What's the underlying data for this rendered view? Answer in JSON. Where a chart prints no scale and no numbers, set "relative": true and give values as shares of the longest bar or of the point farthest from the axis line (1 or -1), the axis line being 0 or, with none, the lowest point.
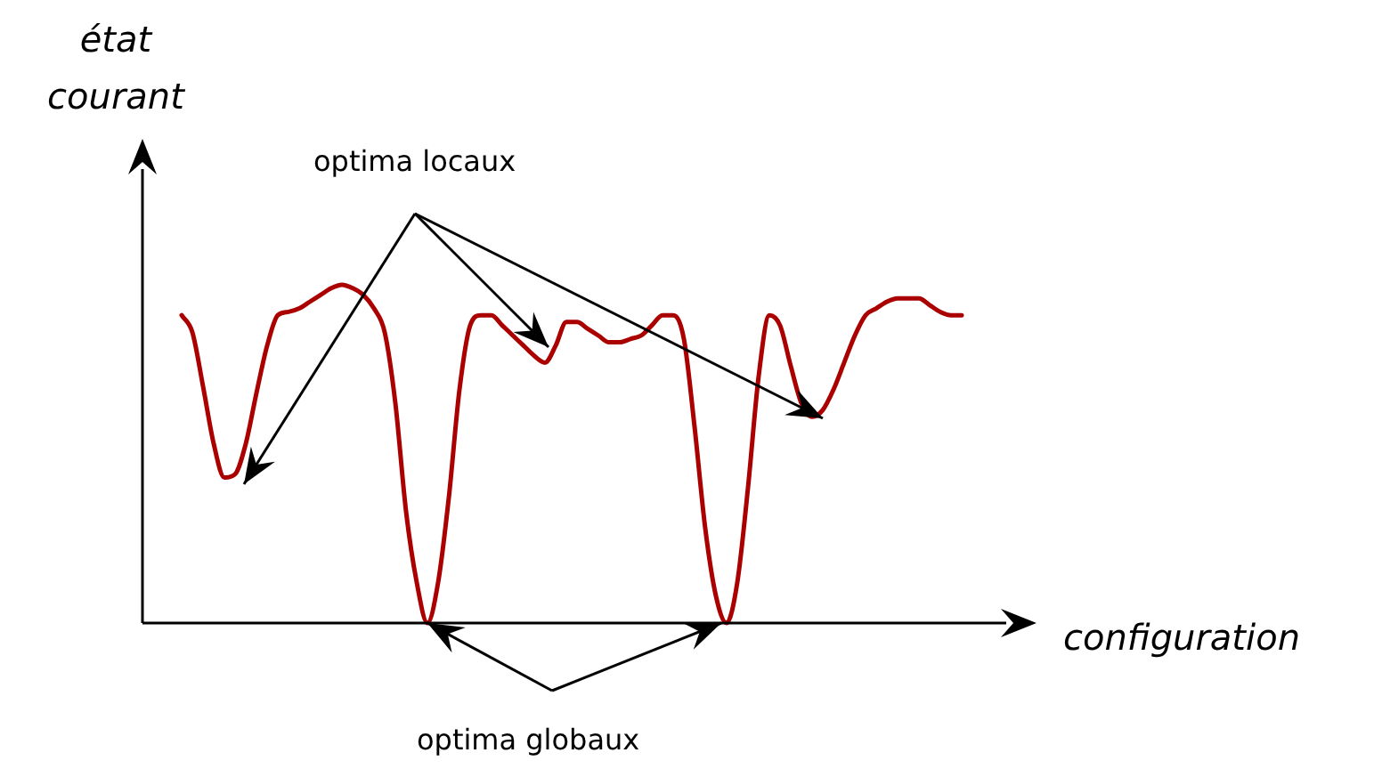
{
  "chart_data": {
    "type": "line",
    "relative": true,
    "xlabel": "configuration",
    "ylabel": "état courant",
    "marker": "none",
    "annotations": [
      "optima locaux",
      "optima globaux"
    ],
    "categories": [
      null,
      null,
      null,
      null,
      null,
      null,
      null,
      null,
      null,
      null,
      null,
      null,
      null,
      null,
      null,
      null,
      null,
      null,
      null,
      null,
      null,
      null,
      null,
      null,
      null,
      null,
      null,
      null,
      null,
      null,
      null,
      null,
      null,
      null,
      null,
      null,
      null,
      null,
      null,
      null,
      null,
      null,
      null,
      null,
      null,
      null,
      null,
      null,
      null,
      null,
      null,
      null,
      null,
      null,
      null,
      null,
      null,
      null,
      null,
      null,
      null,
      null,
      null,
      null,
      null,
      null,
      null,
      null,
      null,
      null,
      null,
      null,
      null,
      null
    ],
    "series": [
      {
        "color": "#aa0000",
        "values": [
          0.91,
          0.86,
          0.7,
          0.53,
          0.43,
          0.44,
          0.53,
          0.68,
          0.82,
          0.91,
          0.92,
          0.93,
          0.95,
          0.97,
          0.99,
          1.0,
          0.99,
          0.97,
          0.93,
          0.86,
          0.65,
          0.33,
          0.12,
          0,
          0.12,
          0.37,
          0.69,
          0.88,
          0.91,
          0.91,
          0.88,
          0.85,
          0.82,
          0.79,
          0.77,
          0.82,
          0.89,
          0.89,
          0.87,
          0.85,
          0.83,
          0.83,
          0.84,
          0.85,
          0.88,
          0.91,
          0.91,
          0.84,
          0.58,
          0.28,
          0.08,
          0,
          0.12,
          0.4,
          0.73,
          0.91,
          0.88,
          0.76,
          0.65,
          0.61,
          0.63,
          0.69,
          0.77,
          0.85,
          0.91,
          0.93,
          0.95,
          0.96,
          0.96,
          0.96,
          0.94,
          0.92,
          0.91,
          0.91
        ]
      }
    ]
  }
}
